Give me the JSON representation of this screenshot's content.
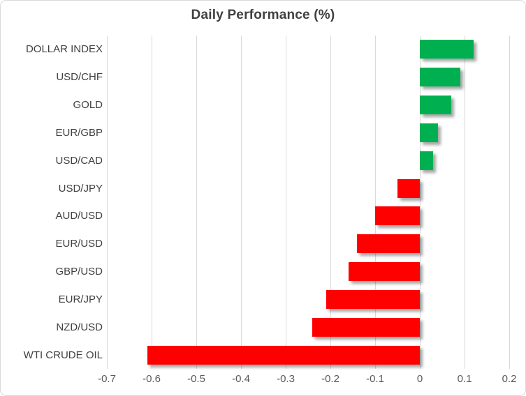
{
  "title": "Daily Performance (%)",
  "colors": {
    "positive_bar": "#00B050",
    "negative_bar": "#FF0000",
    "gridline": "#D9D9D9",
    "title_text": "#404040",
    "category_text": "#404040",
    "tick_text": "#595959",
    "frame_border": "#D9D9D9",
    "background": "#FFFFFF"
  },
  "chart_data": {
    "type": "bar",
    "orientation": "horizontal",
    "title": "Daily Performance (%)",
    "categories": [
      "DOLLAR INDEX",
      "USD/CHF",
      "GOLD",
      "EUR/GBP",
      "USD/CAD",
      "USD/JPY",
      "AUD/USD",
      "EUR/USD",
      "GBP/USD",
      "EUR/JPY",
      "NZD/USD",
      "WTI CRUDE OIL"
    ],
    "values": [
      0.12,
      0.09,
      0.07,
      0.04,
      0.03,
      -0.05,
      -0.1,
      -0.14,
      -0.16,
      -0.21,
      -0.24,
      -0.61
    ],
    "xlabel": "",
    "ylabel": "",
    "xlim": [
      -0.7,
      0.2
    ],
    "xticks": [
      -0.7,
      -0.6,
      -0.5,
      -0.4,
      -0.3,
      -0.2,
      -0.1,
      0,
      0.1,
      0.2
    ],
    "xtick_labels": [
      "-0.7",
      "-0.6",
      "-0.5",
      "-0.4",
      "-0.3",
      "-0.2",
      "-0.1",
      "0",
      "0.1",
      "0.2"
    ],
    "grid": true,
    "legend": false
  }
}
